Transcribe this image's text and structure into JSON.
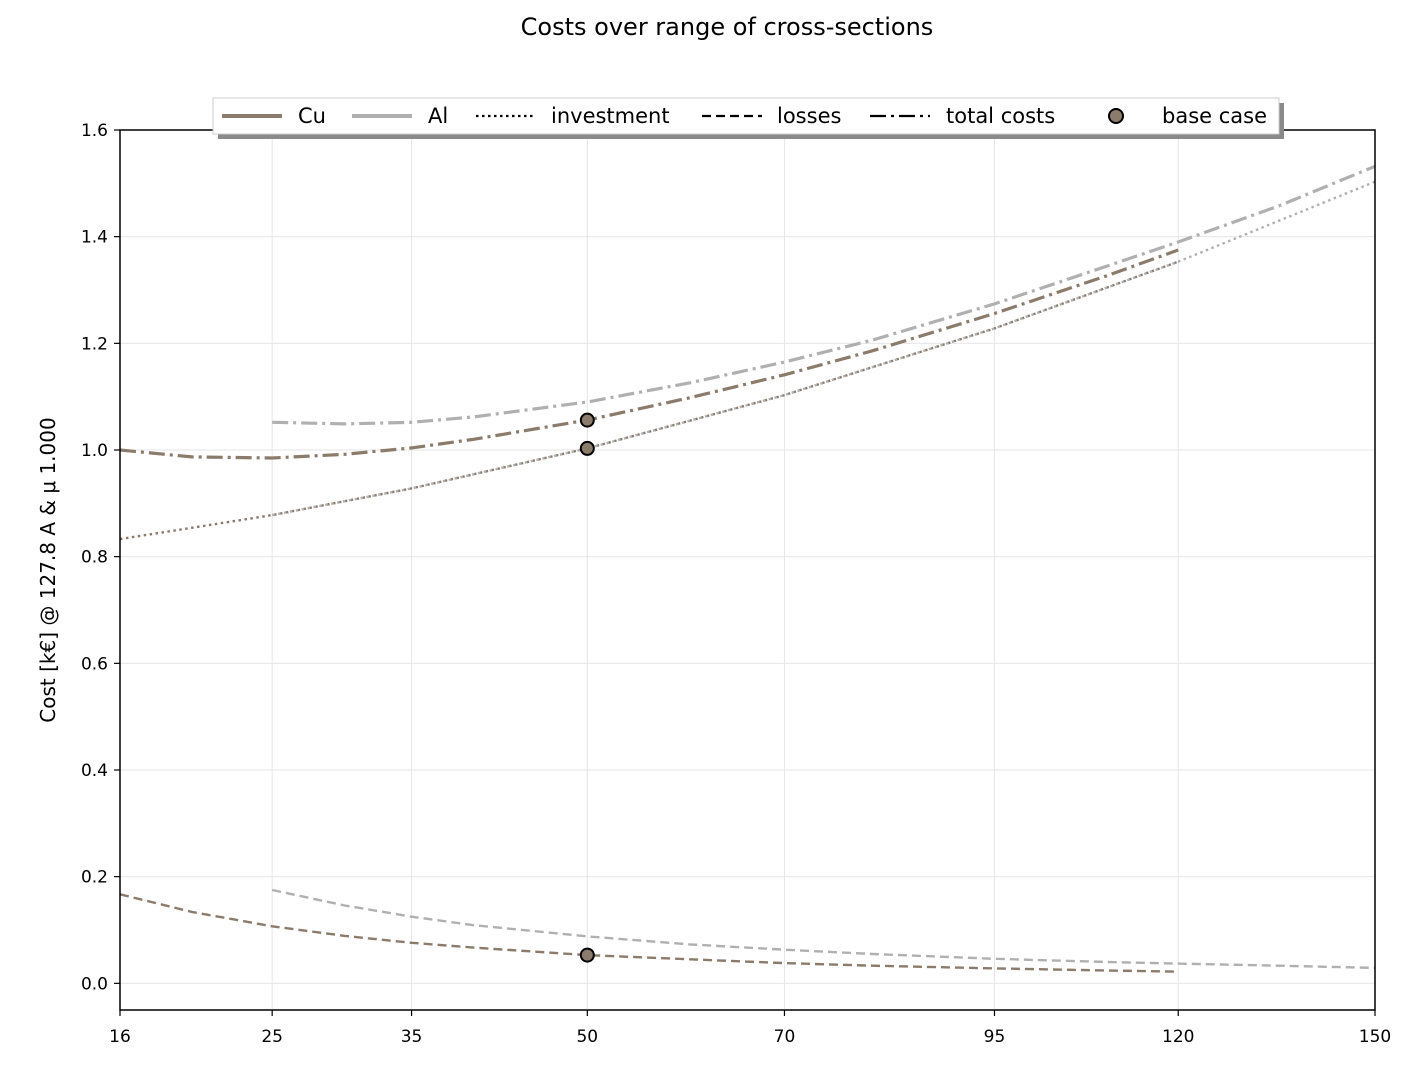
{
  "chart_data": {
    "type": "line",
    "title": "Costs over range of cross-sections",
    "xlabel": "",
    "ylabel": "Cost [k€] @ 127.8 A & μ 1.000",
    "xlim": [
      16,
      150
    ],
    "ylim": [
      -0.05,
      1.6
    ],
    "x_ticks": [
      16,
      25,
      35,
      50,
      70,
      95,
      120,
      150
    ],
    "y_ticks": [
      0.0,
      0.2,
      0.4,
      0.6,
      0.8,
      1.0,
      1.2,
      1.4,
      1.6
    ],
    "y_tick_labels": [
      "0.0",
      "0.2",
      "0.4",
      "0.6",
      "0.8",
      "1.0",
      "1.2",
      "1.4",
      "1.6"
    ],
    "grid": true,
    "legend_position": "top-center",
    "colors": {
      "Cu": "#8b7b6b",
      "Al": "#b0b0b0",
      "marker_edge": "#000000"
    },
    "legend": [
      {
        "label": "Cu",
        "kind": "material",
        "color": "#8b7b6b",
        "dash": "solid"
      },
      {
        "label": "Al",
        "kind": "material",
        "color": "#b0b0b0",
        "dash": "solid"
      },
      {
        "label": "investment",
        "kind": "style",
        "color": "#000000",
        "dash": "dotted"
      },
      {
        "label": "losses",
        "kind": "style",
        "color": "#000000",
        "dash": "dashed"
      },
      {
        "label": "total costs",
        "kind": "style",
        "color": "#000000",
        "dash": "dashdot"
      },
      {
        "label": "base case",
        "kind": "marker",
        "color": "#8b7b6b"
      }
    ],
    "series": [
      {
        "material": "Cu",
        "kind": "investment",
        "dash": "dotted",
        "x": [
          16,
          25,
          35,
          50,
          70,
          95,
          120
        ],
        "y": [
          0.833,
          0.878,
          0.928,
          1.003,
          1.103,
          1.228,
          1.353
        ]
      },
      {
        "material": "Cu",
        "kind": "losses",
        "dash": "dashed",
        "x": [
          16,
          20,
          25,
          30,
          35,
          40,
          50,
          60,
          70,
          80,
          95,
          110,
          120
        ],
        "y": [
          0.167,
          0.134,
          0.107,
          0.089,
          0.076,
          0.067,
          0.053,
          0.045,
          0.038,
          0.033,
          0.028,
          0.024,
          0.022
        ]
      },
      {
        "material": "Cu",
        "kind": "total costs",
        "dash": "dashdot",
        "x": [
          16,
          20,
          25,
          30,
          35,
          40,
          50,
          60,
          70,
          80,
          95,
          110,
          120
        ],
        "y": [
          1.0,
          0.987,
          0.985,
          0.992,
          1.004,
          1.02,
          1.056,
          1.098,
          1.141,
          1.186,
          1.256,
          1.327,
          1.375
        ]
      },
      {
        "material": "Al",
        "kind": "investment",
        "dash": "dotted",
        "x": [
          25,
          35,
          50,
          70,
          95,
          120,
          150
        ],
        "y": [
          0.878,
          0.928,
          1.003,
          1.103,
          1.228,
          1.353,
          1.503
        ]
      },
      {
        "material": "Al",
        "kind": "losses",
        "dash": "dashed",
        "x": [
          25,
          30,
          35,
          40,
          50,
          60,
          70,
          80,
          95,
          110,
          120,
          135,
          150
        ],
        "y": [
          0.175,
          0.146,
          0.125,
          0.109,
          0.088,
          0.073,
          0.063,
          0.055,
          0.046,
          0.04,
          0.037,
          0.033,
          0.029
        ]
      },
      {
        "material": "Al",
        "kind": "total costs",
        "dash": "dashdot",
        "x": [
          25,
          30,
          35,
          40,
          50,
          60,
          70,
          80,
          95,
          110,
          120,
          135,
          150
        ],
        "y": [
          1.052,
          1.049,
          1.052,
          1.062,
          1.09,
          1.126,
          1.165,
          1.206,
          1.274,
          1.345,
          1.39,
          1.458,
          1.532
        ]
      }
    ],
    "base_case": [
      {
        "x": 50,
        "y": 1.056
      },
      {
        "x": 50,
        "y": 1.003
      },
      {
        "x": 50,
        "y": 0.053
      }
    ]
  }
}
